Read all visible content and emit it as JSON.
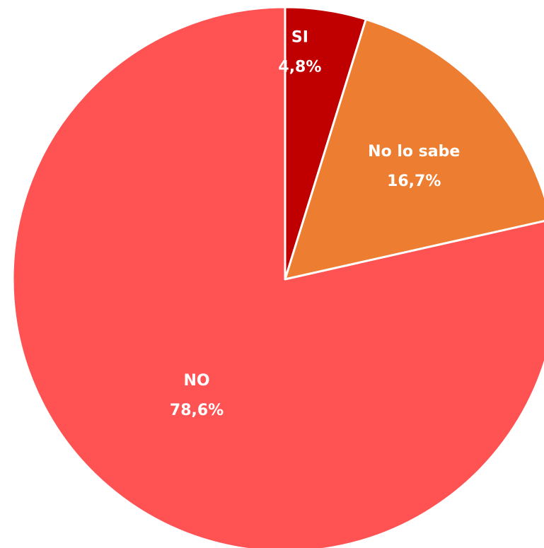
{
  "chart_data": {
    "type": "pie",
    "title": "",
    "start_angle_deg": 0,
    "direction": "clockwise",
    "slices": [
      {
        "name": "SI",
        "value": 4.8,
        "label": "4,8%",
        "color": "#c00000"
      },
      {
        "name": "No lo sabe",
        "value": 16.7,
        "label": "16,7%",
        "color": "#ed7d31"
      },
      {
        "name": "NO",
        "value": 78.6,
        "label": "78,6%",
        "color": "#ff5252"
      }
    ],
    "slice_border_color": "#ffffff",
    "legend": "none"
  }
}
